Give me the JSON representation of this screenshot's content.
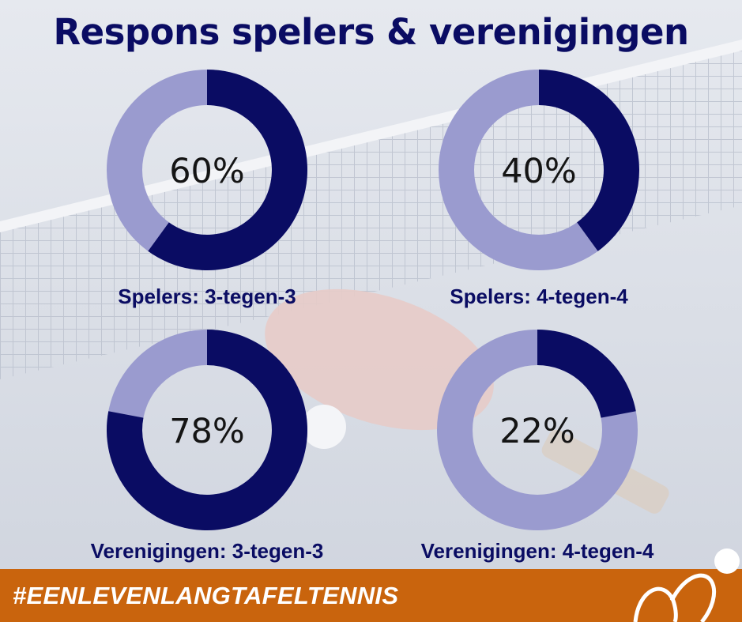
{
  "title": "Respons spelers & verenigingen",
  "colors": {
    "dark": "#0a0c63",
    "light": "#9a9bcf",
    "orange": "#c9640d",
    "text": "#141414"
  },
  "footer": {
    "hashtag": "#EENLEVENLANGTAFELTENNIS"
  },
  "chart_data": [
    {
      "type": "pie",
      "label": "Spelers: 3-tegen-3",
      "value_label": "60%",
      "value": 60
    },
    {
      "type": "pie",
      "label": "Spelers: 4-tegen-4",
      "value_label": "40%",
      "value": 40
    },
    {
      "type": "pie",
      "label": "Verenigingen: 3-tegen-3",
      "value_label": "78%",
      "value": 78
    },
    {
      "type": "pie",
      "label": "Verenigingen: 4-tegen-4",
      "value_label": "22%",
      "value": 22
    }
  ]
}
